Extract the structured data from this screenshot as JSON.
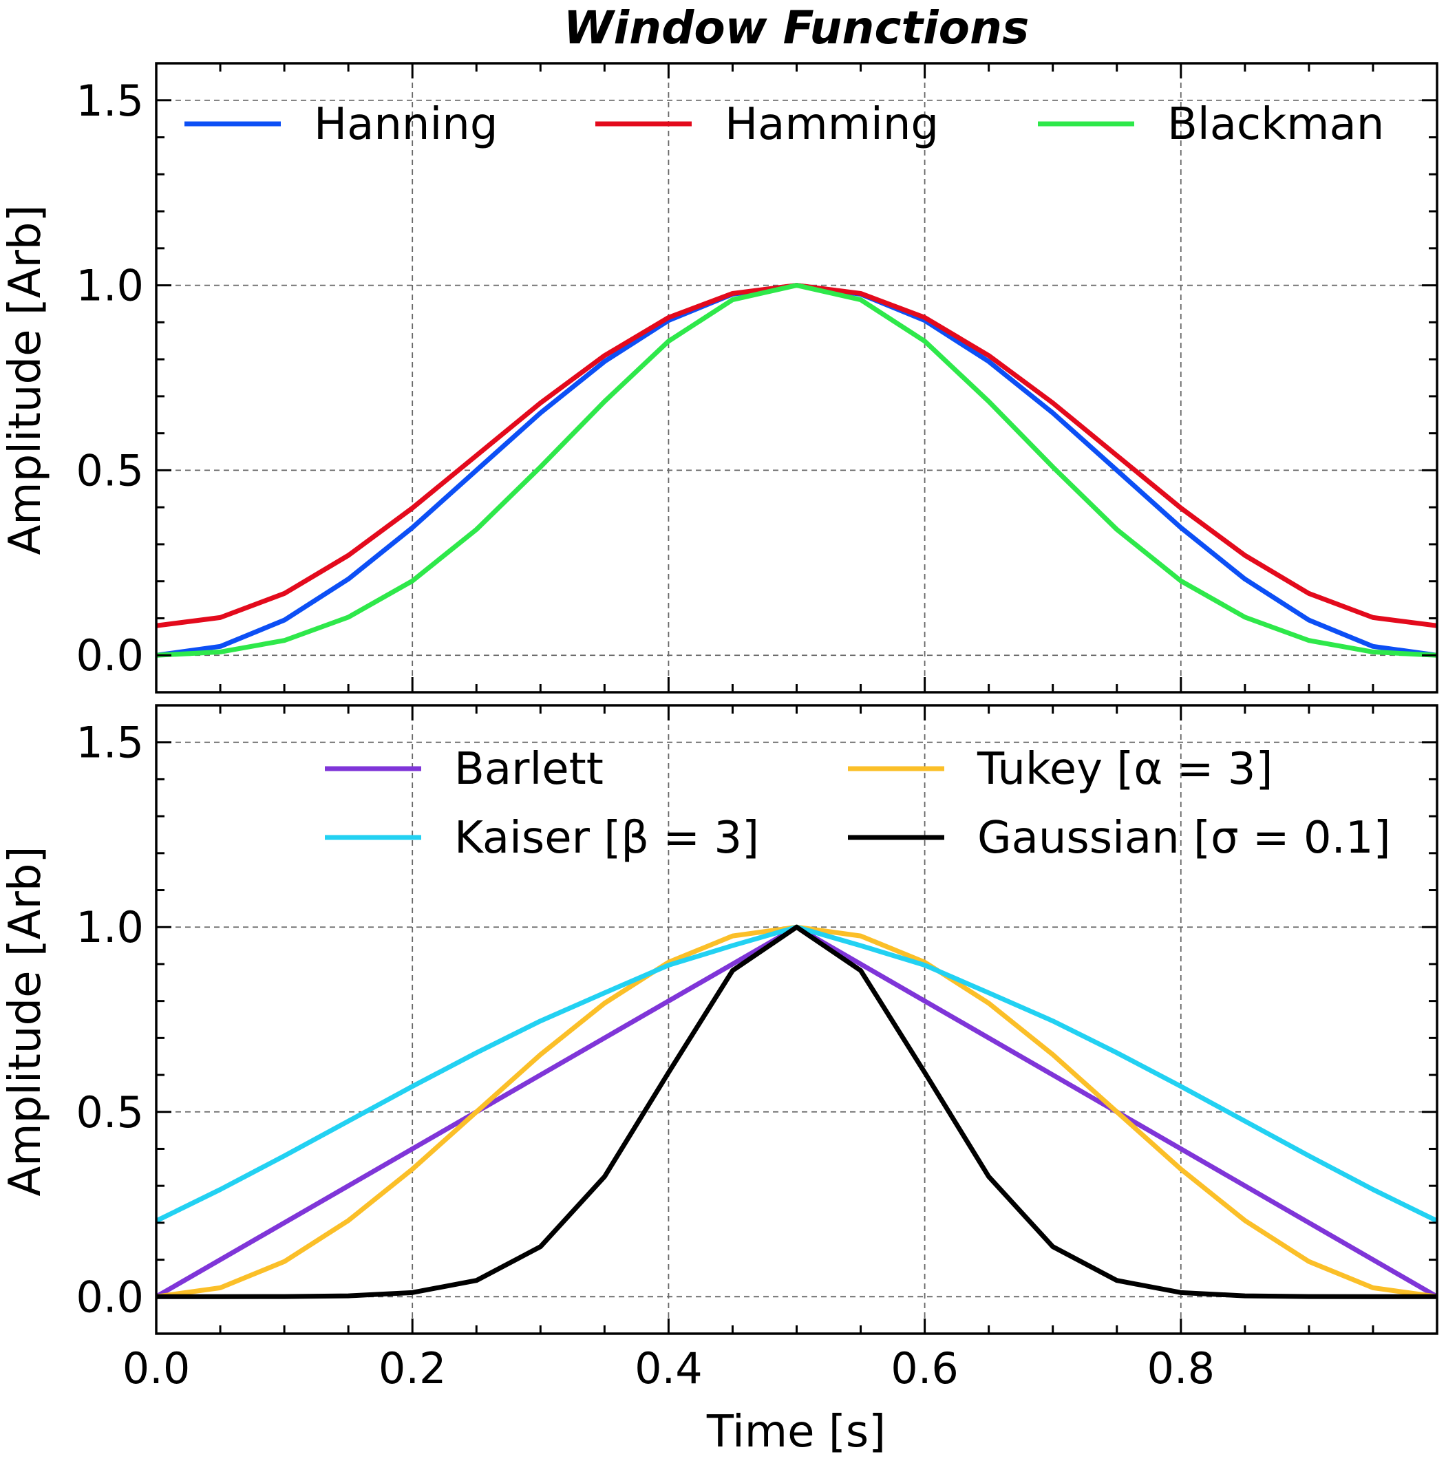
{
  "chart_data": [
    {
      "type": "line",
      "title": "Window Functions",
      "xlabel": "",
      "ylabel": "Amplitude [Arb]",
      "xlim": [
        0.0,
        1.0
      ],
      "ylim": [
        -0.1,
        1.6
      ],
      "xticks": [
        "0.0",
        "0.2",
        "0.4",
        "0.6",
        "0.8"
      ],
      "yticks": [
        "0.0",
        "0.5",
        "1.0",
        "1.5"
      ],
      "grid": true,
      "legend": {
        "placement": "top",
        "columns": 3
      },
      "series": [
        {
          "name": "Hanning",
          "color": "#0c4ff5",
          "x": [
            0.0,
            0.05,
            0.1,
            0.15,
            0.2,
            0.25,
            0.3,
            0.35,
            0.4,
            0.45,
            0.5,
            0.55,
            0.6,
            0.65,
            0.7,
            0.75,
            0.8,
            0.85,
            0.9,
            0.95,
            1.0
          ],
          "y": [
            0.0,
            0.024,
            0.095,
            0.206,
            0.345,
            0.5,
            0.655,
            0.794,
            0.905,
            0.976,
            1.0,
            0.976,
            0.905,
            0.794,
            0.655,
            0.5,
            0.345,
            0.206,
            0.095,
            0.024,
            0.0
          ]
        },
        {
          "name": "Hamming",
          "color": "#e30a1c",
          "x": [
            0.0,
            0.05,
            0.1,
            0.15,
            0.2,
            0.25,
            0.3,
            0.35,
            0.4,
            0.45,
            0.5,
            0.55,
            0.6,
            0.65,
            0.7,
            0.75,
            0.8,
            0.85,
            0.9,
            0.95,
            1.0
          ],
          "y": [
            0.08,
            0.102,
            0.167,
            0.27,
            0.398,
            0.54,
            0.682,
            0.81,
            0.913,
            0.978,
            1.0,
            0.978,
            0.913,
            0.81,
            0.682,
            0.54,
            0.398,
            0.27,
            0.167,
            0.102,
            0.08
          ]
        },
        {
          "name": "Blackman",
          "color": "#2ee84a",
          "x": [
            0.0,
            0.05,
            0.1,
            0.15,
            0.2,
            0.25,
            0.3,
            0.35,
            0.4,
            0.45,
            0.5,
            0.55,
            0.6,
            0.65,
            0.7,
            0.75,
            0.8,
            0.85,
            0.9,
            0.95,
            1.0
          ],
          "y": [
            0.0,
            0.009,
            0.04,
            0.103,
            0.201,
            0.34,
            0.509,
            0.686,
            0.849,
            0.961,
            1.0,
            0.961,
            0.849,
            0.686,
            0.509,
            0.34,
            0.201,
            0.103,
            0.04,
            0.009,
            0.0
          ]
        }
      ]
    },
    {
      "type": "line",
      "title": "",
      "xlabel": "Time [s]",
      "ylabel": "Amplitude [Arb]",
      "xlim": [
        0.0,
        1.0
      ],
      "ylim": [
        -0.1,
        1.6
      ],
      "xticks": [
        "0.0",
        "0.2",
        "0.4",
        "0.6",
        "0.8"
      ],
      "yticks": [
        "0.0",
        "0.5",
        "1.0",
        "1.5"
      ],
      "grid": true,
      "legend": {
        "placement": "top",
        "columns": 2
      },
      "series": [
        {
          "name": "Barlett",
          "color": "#7f35d8",
          "x": [
            0.0,
            0.5,
            1.0
          ],
          "y": [
            0.0,
            1.0,
            0.0
          ]
        },
        {
          "name": "Tukey [α = 3]",
          "color": "#fbbf28",
          "x": [
            0.0,
            0.05,
            0.1,
            0.15,
            0.2,
            0.25,
            0.3,
            0.35,
            0.4,
            0.45,
            0.5,
            0.55,
            0.6,
            0.65,
            0.7,
            0.75,
            0.8,
            0.85,
            0.9,
            0.95,
            1.0
          ],
          "y": [
            0.0,
            0.024,
            0.095,
            0.206,
            0.345,
            0.5,
            0.655,
            0.794,
            0.905,
            0.976,
            1.0,
            0.976,
            0.905,
            0.794,
            0.655,
            0.5,
            0.345,
            0.206,
            0.095,
            0.024,
            0.0
          ]
        },
        {
          "name": "Kaiser [β = 3]",
          "color": "#22d1f2",
          "x": [
            0.0,
            0.05,
            0.1,
            0.15,
            0.2,
            0.25,
            0.3,
            0.35,
            0.4,
            0.45,
            0.5,
            0.55,
            0.6,
            0.65,
            0.7,
            0.75,
            0.8,
            0.85,
            0.9,
            0.95,
            1.0
          ],
          "y": [
            0.205,
            0.29,
            0.381,
            0.475,
            0.569,
            0.66,
            0.746,
            0.822,
            0.897,
            0.95,
            1.0,
            0.95,
            0.897,
            0.822,
            0.746,
            0.66,
            0.569,
            0.475,
            0.381,
            0.29,
            0.205
          ]
        },
        {
          "name": "Gaussian [σ = 0.1]",
          "color": "#000000",
          "x": [
            0.0,
            0.05,
            0.1,
            0.15,
            0.2,
            0.25,
            0.3,
            0.35,
            0.4,
            0.45,
            0.5,
            0.55,
            0.6,
            0.65,
            0.7,
            0.75,
            0.8,
            0.85,
            0.9,
            0.95,
            1.0
          ],
          "y": [
            0.0,
            0.0,
            0.0003,
            0.0022,
            0.0111,
            0.0439,
            0.1353,
            0.3247,
            0.6065,
            0.8825,
            1.0,
            0.8825,
            0.6065,
            0.3247,
            0.1353,
            0.0439,
            0.0111,
            0.0022,
            0.0003,
            0.0,
            0.0
          ]
        }
      ]
    }
  ]
}
